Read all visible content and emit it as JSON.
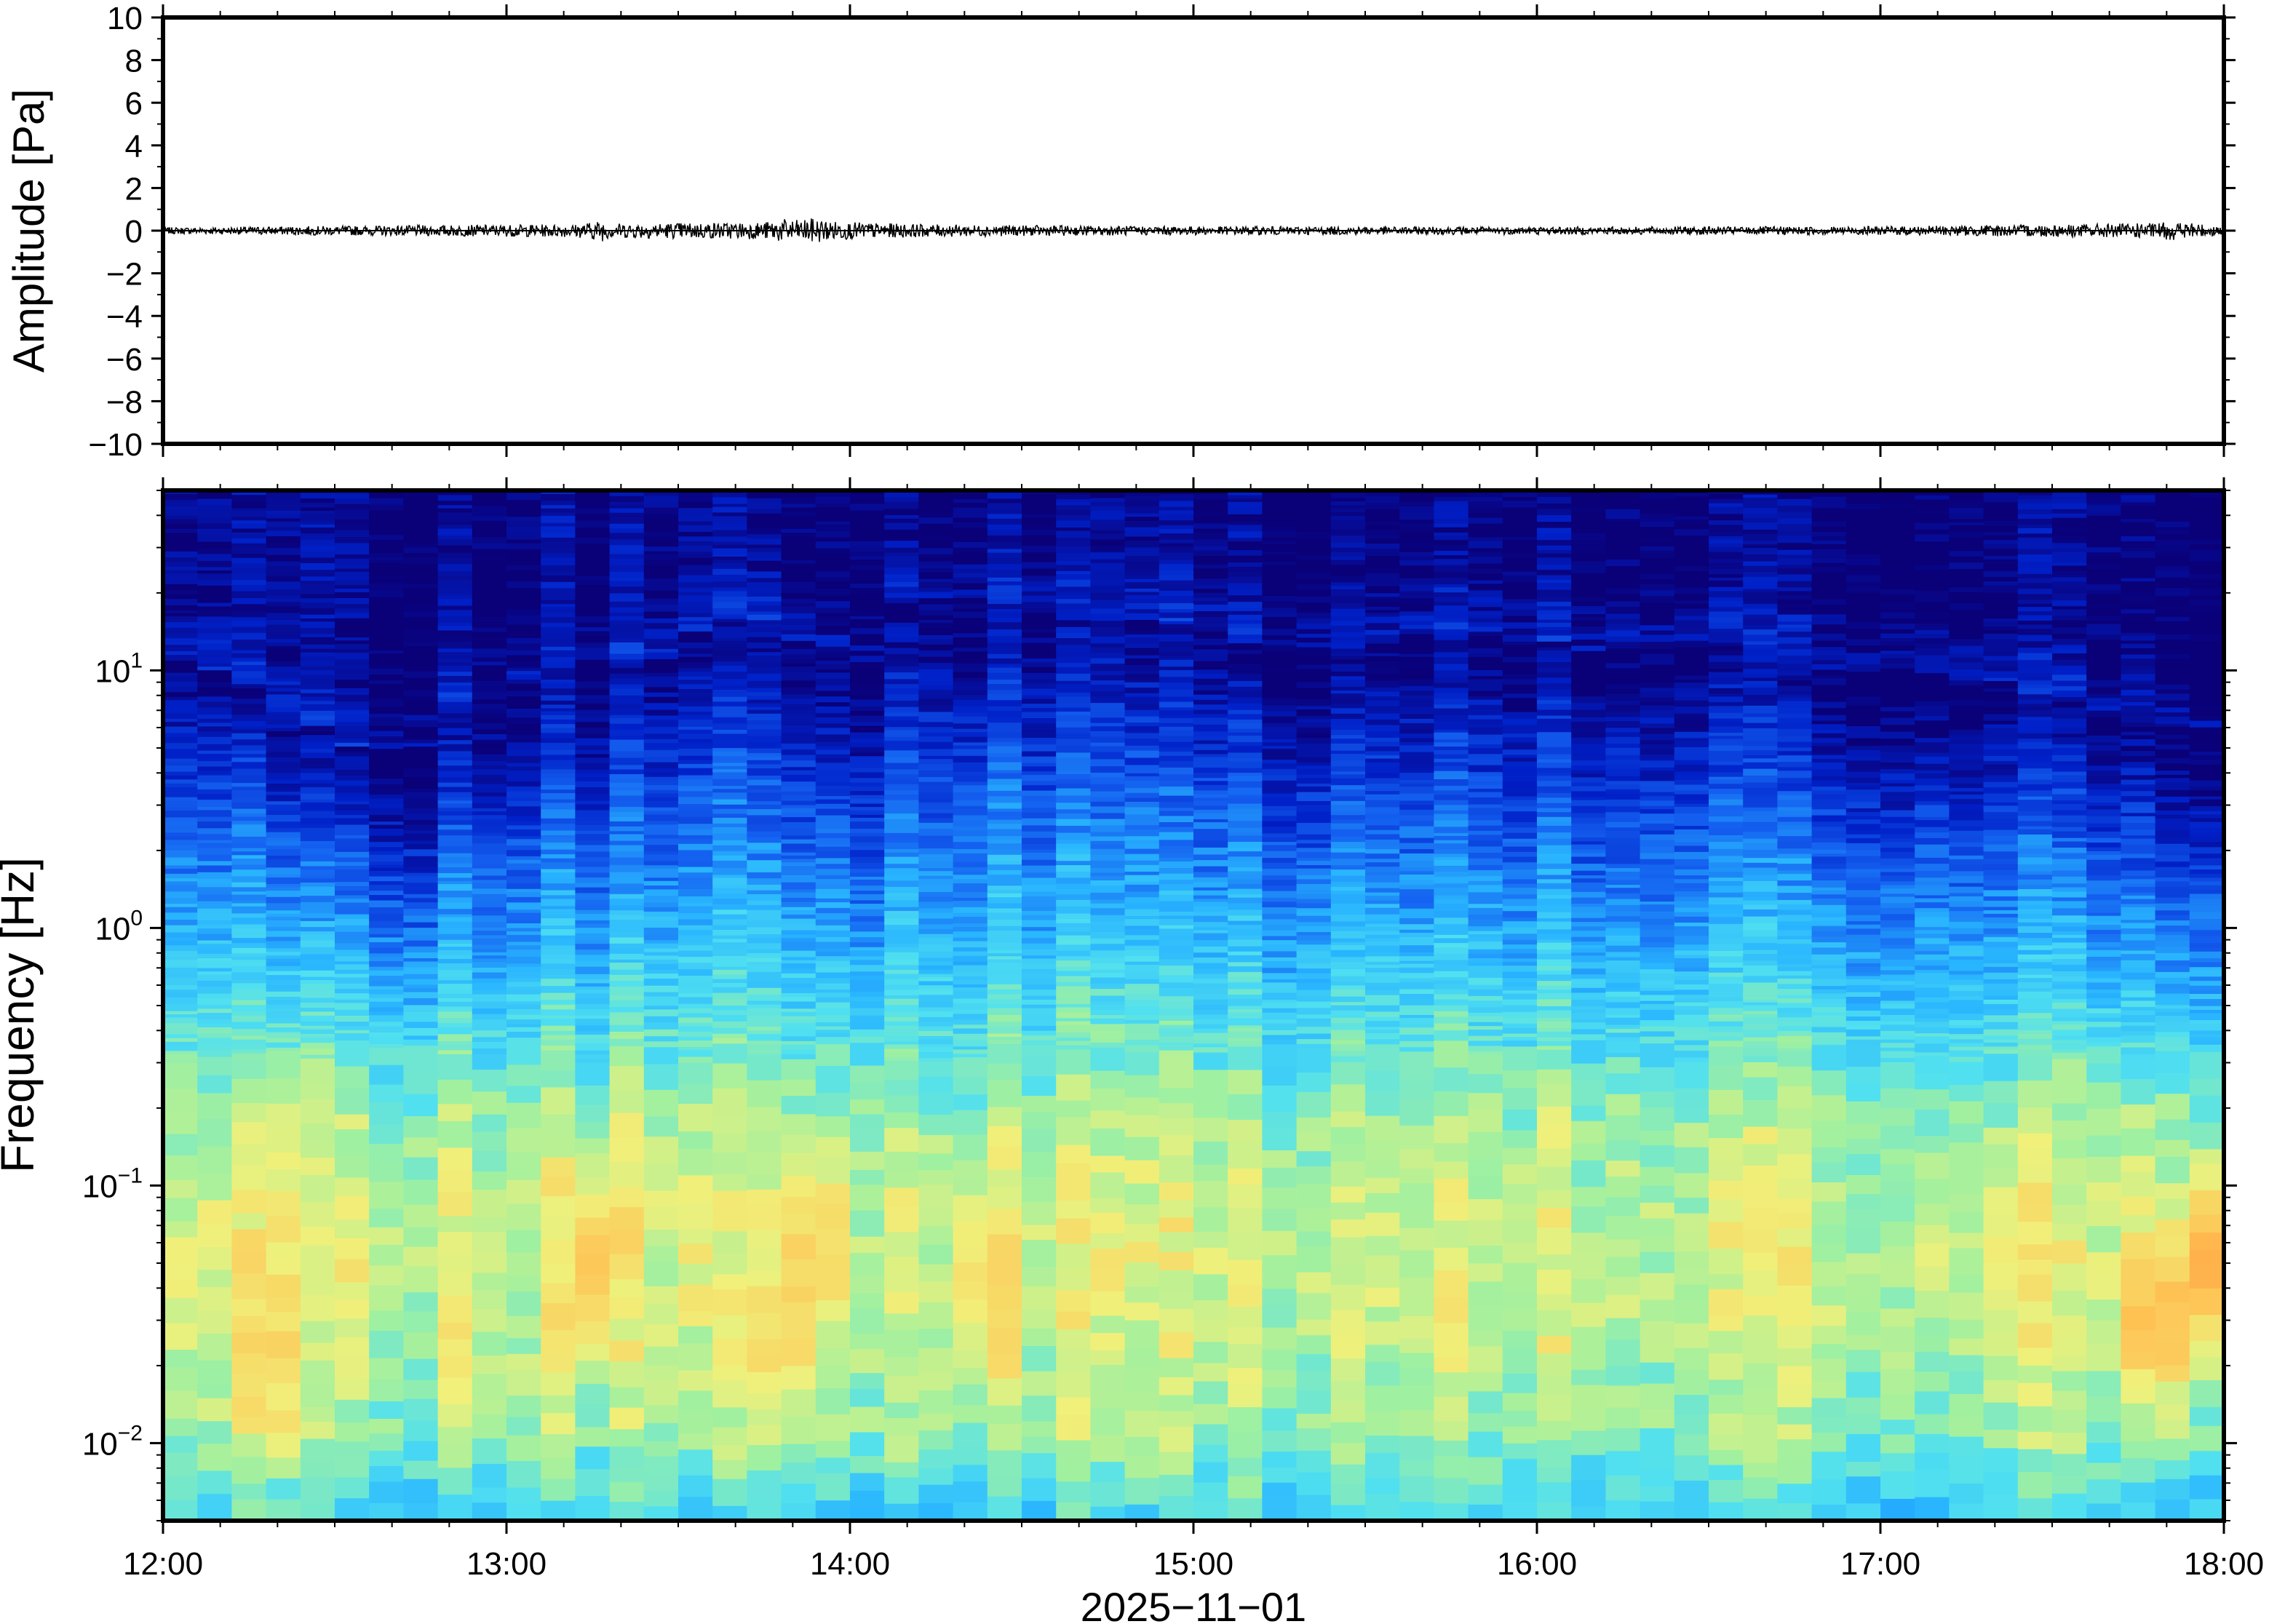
{
  "chart_data": [
    {
      "type": "line",
      "ylabel": "Amplitude [Pa]",
      "ylim": [
        -10,
        10
      ],
      "y_ticks": [
        "10",
        "8",
        "6",
        "4",
        "2",
        "0",
        "−2",
        "−4",
        "−6",
        "−8",
        "−10"
      ],
      "y_tick_values": [
        10,
        8,
        6,
        4,
        2,
        0,
        -2,
        -4,
        -6,
        -8,
        -10
      ],
      "x_range_hours": [
        12,
        18
      ],
      "series_color": "#000000",
      "trace_envelope": {
        "x_hours": [
          12.0,
          12.35,
          13.2,
          13.28,
          13.3,
          13.75,
          13.8,
          13.85,
          13.9,
          13.95,
          14.0,
          14.2,
          14.5,
          15.0,
          16.0,
          17.0,
          17.8,
          17.85,
          17.95,
          18.0
        ],
        "amplitude_pa": [
          0.15,
          0.2,
          0.3,
          0.5,
          0.35,
          0.4,
          0.55,
          0.5,
          0.6,
          0.45,
          0.4,
          0.3,
          0.25,
          0.2,
          0.18,
          0.2,
          0.35,
          0.45,
          0.3,
          0.2
        ]
      }
    },
    {
      "type": "heatmap",
      "ylabel": "Frequency [Hz]",
      "xlabel": "2025−11−01",
      "yscale": "log",
      "ylim": [
        0.005,
        50
      ],
      "y_ticks": [
        {
          "value": 10,
          "base": "10",
          "exp": "1"
        },
        {
          "value": 1,
          "base": "10",
          "exp": "0"
        },
        {
          "value": 0.1,
          "base": "10",
          "exp": "−1"
        },
        {
          "value": 0.01,
          "base": "10",
          "exp": "−2"
        }
      ],
      "x_ticks": [
        "12:00",
        "13:00",
        "14:00",
        "15:00",
        "16:00",
        "17:00",
        "18:00"
      ],
      "x_tick_hours": [
        12,
        13,
        14,
        15,
        16,
        17,
        18
      ],
      "colormap": [
        "#0a0078",
        "#0020c8",
        "#1460f0",
        "#28b4ff",
        "#50e0f0",
        "#a0f0a0",
        "#f0f07a",
        "#ffbe50",
        "#ff783c"
      ],
      "time_bins": 60,
      "high_freq_edge_hz": [
        11,
        10,
        9,
        6,
        6,
        5,
        5,
        5,
        7,
        8,
        9,
        10,
        11,
        11,
        11,
        14,
        16,
        16,
        13,
        12,
        10,
        18,
        19,
        19,
        18,
        18,
        17,
        16,
        16,
        15,
        15,
        13,
        12,
        12,
        12,
        13,
        14,
        14,
        14,
        13,
        13,
        12,
        12,
        13,
        13,
        13,
        12,
        11,
        10,
        10,
        10,
        10,
        9,
        9,
        8,
        8,
        7,
        7,
        6,
        6
      ],
      "energy_peaks": [
        {
          "hour": 12.3,
          "freq_hz": 0.02,
          "level": 0.85
        },
        {
          "hour": 13.25,
          "freq_hz": 0.05,
          "level": 0.85
        },
        {
          "hour": 13.8,
          "freq_hz": 0.025,
          "level": 0.85
        },
        {
          "hour": 13.9,
          "freq_hz": 0.06,
          "level": 0.85
        },
        {
          "hour": 14.4,
          "freq_hz": 0.04,
          "level": 0.85
        },
        {
          "hour": 17.4,
          "freq_hz": 0.05,
          "level": 0.8
        },
        {
          "hour": 17.8,
          "freq_hz": 0.03,
          "level": 0.95
        },
        {
          "hour": 17.95,
          "freq_hz": 0.05,
          "level": 0.9
        }
      ]
    }
  ]
}
